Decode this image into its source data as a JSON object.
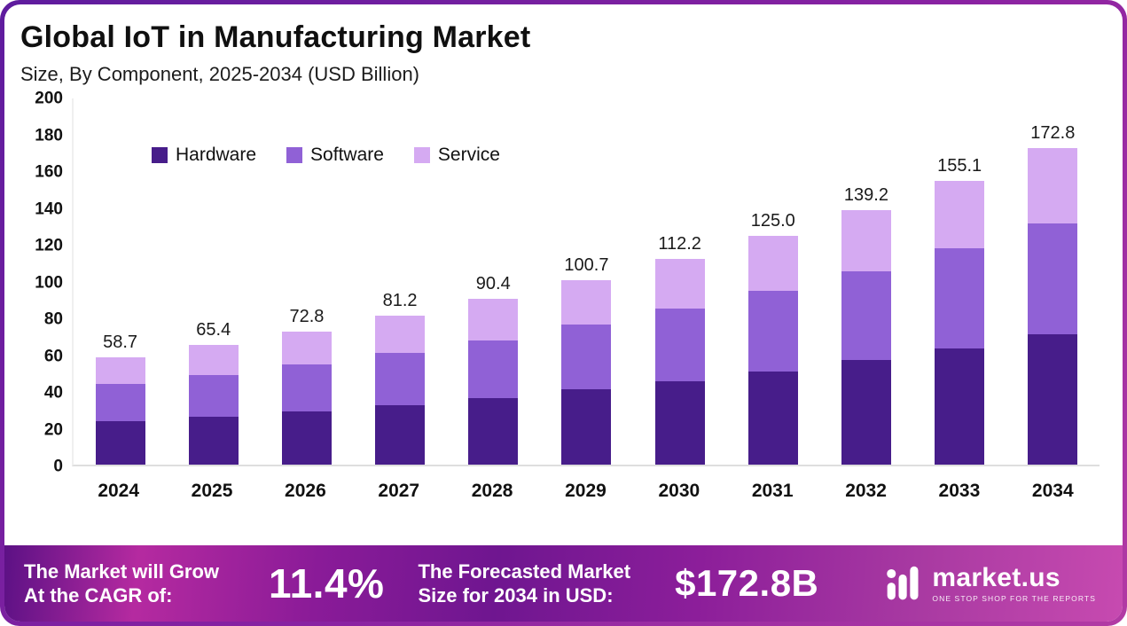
{
  "header": {
    "title": "Global IoT in Manufacturing Market",
    "subtitle": "Size, By Component, 2025-2034 (USD Billion)"
  },
  "chart_data": {
    "type": "bar",
    "stacked": true,
    "title": "Global IoT in Manufacturing Market Size, By Component, 2025-2034 (USD Billion)",
    "categories": [
      "2024",
      "2025",
      "2026",
      "2027",
      "2028",
      "2029",
      "2030",
      "2031",
      "2032",
      "2033",
      "2034"
    ],
    "series": [
      {
        "name": "Hardware",
        "color": "#471d8a",
        "values": [
          23.5,
          26.0,
          29.0,
          32.5,
          36.5,
          41.0,
          45.5,
          51.0,
          57.0,
          63.5,
          71.0
        ]
      },
      {
        "name": "Software",
        "color": "#9061d6",
        "values": [
          20.5,
          23.0,
          25.5,
          28.5,
          31.5,
          35.5,
          39.5,
          44.0,
          48.5,
          54.5,
          60.5
        ]
      },
      {
        "name": "Service",
        "color": "#d5aaf2",
        "values": [
          14.7,
          16.4,
          18.3,
          20.2,
          22.4,
          24.2,
          27.2,
          30.0,
          33.7,
          37.1,
          41.3
        ]
      }
    ],
    "totals": [
      58.7,
      65.4,
      72.8,
      81.2,
      90.4,
      100.7,
      112.2,
      125.0,
      139.2,
      155.1,
      172.8
    ],
    "xlabel": "",
    "ylabel": "",
    "ylim": [
      0,
      200
    ],
    "yticks": [
      0,
      20,
      40,
      60,
      80,
      100,
      120,
      140,
      160,
      180,
      200
    ],
    "grid": false,
    "legend_position": "inside-top-left"
  },
  "footer": {
    "cagr_label_line1": "The Market will Grow",
    "cagr_label_line2": "At the CAGR of:",
    "cagr_value": "11.4%",
    "forecast_label_line1": "The Forecasted Market",
    "forecast_label_line2": "Size for 2034 in USD:",
    "forecast_value": "$172.8B",
    "brand": {
      "name": "market.us",
      "tagline": "ONE STOP SHOP FOR THE REPORTS"
    }
  }
}
